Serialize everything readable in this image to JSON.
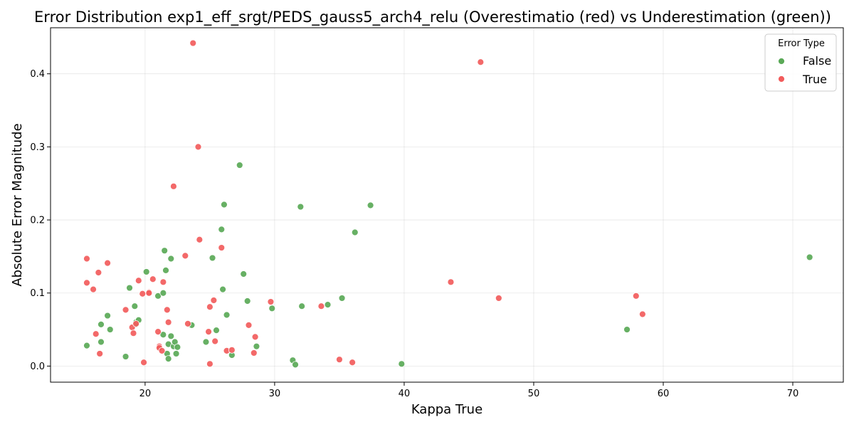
{
  "chart_data": {
    "type": "scatter",
    "title": "Error Distribution exp1_eff_srgt/PEDS_gauss5_arch4_relu (Overestimatio (red) vs Underestimation (green))",
    "xlabel": "Kappa True",
    "ylabel": "Absolute Error Magnitude",
    "xlim": [
      12.7,
      73.9
    ],
    "ylim": [
      -0.022,
      0.463
    ],
    "xticks": [
      "20",
      "30",
      "40",
      "50",
      "60",
      "70"
    ],
    "yticks": [
      "0.0",
      "0.1",
      "0.2",
      "0.3",
      "0.4"
    ],
    "grid": true,
    "legend": {
      "title": "Error Type",
      "placement": "top-right",
      "entries": [
        "False",
        "True"
      ]
    },
    "colors": {
      "False": "#5aa957",
      "True": "#f25c5c"
    },
    "series": [
      {
        "name": "False",
        "points": [
          [
            15.5,
            0.028
          ],
          [
            16.6,
            0.057
          ],
          [
            16.6,
            0.033
          ],
          [
            17.1,
            0.069
          ],
          [
            17.3,
            0.05
          ],
          [
            18.5,
            0.013
          ],
          [
            18.8,
            0.107
          ],
          [
            19.2,
            0.082
          ],
          [
            19.3,
            0.06
          ],
          [
            19.3,
            0.057
          ],
          [
            19.5,
            0.063
          ],
          [
            20.1,
            0.129
          ],
          [
            21.0,
            0.096
          ],
          [
            21.4,
            0.1
          ],
          [
            21.4,
            0.043
          ],
          [
            21.5,
            0.158
          ],
          [
            21.6,
            0.131
          ],
          [
            21.7,
            0.017
          ],
          [
            21.8,
            0.03
          ],
          [
            21.8,
            0.01
          ],
          [
            22.0,
            0.147
          ],
          [
            22.0,
            0.041
          ],
          [
            22.2,
            0.027
          ],
          [
            22.3,
            0.033
          ],
          [
            22.4,
            0.017
          ],
          [
            22.5,
            0.026
          ],
          [
            23.6,
            0.056
          ],
          [
            24.7,
            0.033
          ],
          [
            25.2,
            0.148
          ],
          [
            25.5,
            0.049
          ],
          [
            25.9,
            0.187
          ],
          [
            26.0,
            0.105
          ],
          [
            26.1,
            0.221
          ],
          [
            26.3,
            0.07
          ],
          [
            26.7,
            0.015
          ],
          [
            27.3,
            0.275
          ],
          [
            27.6,
            0.126
          ],
          [
            27.9,
            0.089
          ],
          [
            28.6,
            0.027
          ],
          [
            29.8,
            0.079
          ],
          [
            31.4,
            0.008
          ],
          [
            31.6,
            0.002
          ],
          [
            32.0,
            0.218
          ],
          [
            32.1,
            0.082
          ],
          [
            34.1,
            0.084
          ],
          [
            35.2,
            0.093
          ],
          [
            36.2,
            0.183
          ],
          [
            37.4,
            0.22
          ],
          [
            39.8,
            0.003
          ],
          [
            57.2,
            0.05
          ],
          [
            71.3,
            0.149
          ]
        ]
      },
      {
        "name": "True",
        "points": [
          [
            15.5,
            0.147
          ],
          [
            15.5,
            0.114
          ],
          [
            16.0,
            0.105
          ],
          [
            16.2,
            0.044
          ],
          [
            16.4,
            0.128
          ],
          [
            16.5,
            0.017
          ],
          [
            17.1,
            0.141
          ],
          [
            18.5,
            0.077
          ],
          [
            19.0,
            0.053
          ],
          [
            19.1,
            0.045
          ],
          [
            19.3,
            0.058
          ],
          [
            19.5,
            0.117
          ],
          [
            19.8,
            0.099
          ],
          [
            19.9,
            0.005
          ],
          [
            20.3,
            0.101
          ],
          [
            20.3,
            0.1
          ],
          [
            20.6,
            0.119
          ],
          [
            21.0,
            0.047
          ],
          [
            21.1,
            0.027
          ],
          [
            21.1,
            0.025
          ],
          [
            21.3,
            0.021
          ],
          [
            21.4,
            0.115
          ],
          [
            21.7,
            0.077
          ],
          [
            21.8,
            0.06
          ],
          [
            22.2,
            0.246
          ],
          [
            23.1,
            0.151
          ],
          [
            23.3,
            0.058
          ],
          [
            23.7,
            0.442
          ],
          [
            24.1,
            0.3
          ],
          [
            24.2,
            0.173
          ],
          [
            24.9,
            0.047
          ],
          [
            25.0,
            0.003
          ],
          [
            25.0,
            0.081
          ],
          [
            25.3,
            0.09
          ],
          [
            25.4,
            0.034
          ],
          [
            25.9,
            0.162
          ],
          [
            26.3,
            0.021
          ],
          [
            26.7,
            0.022
          ],
          [
            28.0,
            0.056
          ],
          [
            28.4,
            0.018
          ],
          [
            28.5,
            0.04
          ],
          [
            29.7,
            0.088
          ],
          [
            33.6,
            0.082
          ],
          [
            35.0,
            0.009
          ],
          [
            36.0,
            0.005
          ],
          [
            43.6,
            0.115
          ],
          [
            45.9,
            0.416
          ],
          [
            47.3,
            0.093
          ],
          [
            57.9,
            0.096
          ],
          [
            58.4,
            0.071
          ]
        ]
      }
    ]
  }
}
